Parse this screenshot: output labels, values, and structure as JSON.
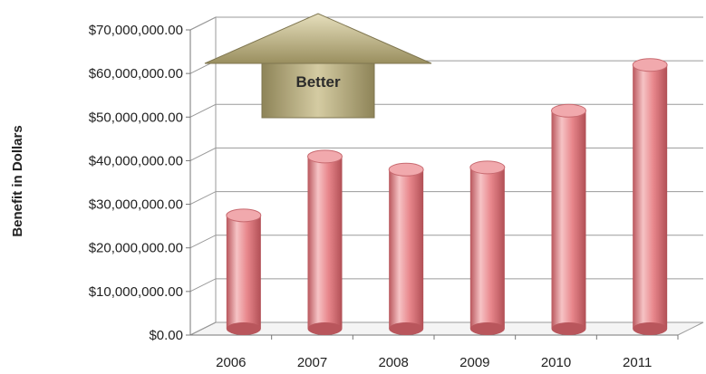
{
  "chart_data": {
    "type": "bar",
    "title": "",
    "xlabel": "",
    "ylabel": "Benefit in Dollars",
    "categories": [
      "2006",
      "2007",
      "2008",
      "2009",
      "2010",
      "2011"
    ],
    "values": [
      26000000,
      39500000,
      36500000,
      37000000,
      50000000,
      60500000
    ],
    "ylim": [
      0,
      70000000
    ],
    "y_ticks": [
      0,
      10000000,
      20000000,
      30000000,
      40000000,
      50000000,
      60000000,
      70000000
    ],
    "y_tick_labels": [
      "$0.00",
      "$10,000,000.00",
      "$20,000,000.00",
      "$30,000,000.00",
      "$40,000,000.00",
      "$50,000,000.00",
      "$60,000,000.00",
      "$70,000,000.00"
    ],
    "grid": true,
    "legend": "none",
    "style": "3d-cylinder",
    "colors": {
      "bar": "#e8878c",
      "bar_light": "#f6c3c5",
      "bar_dark": "#b9565c",
      "arrow": "#b7ad80",
      "grid": "#9a9a9a"
    },
    "annotation": {
      "text": "Better",
      "shape": "up-arrow"
    }
  }
}
